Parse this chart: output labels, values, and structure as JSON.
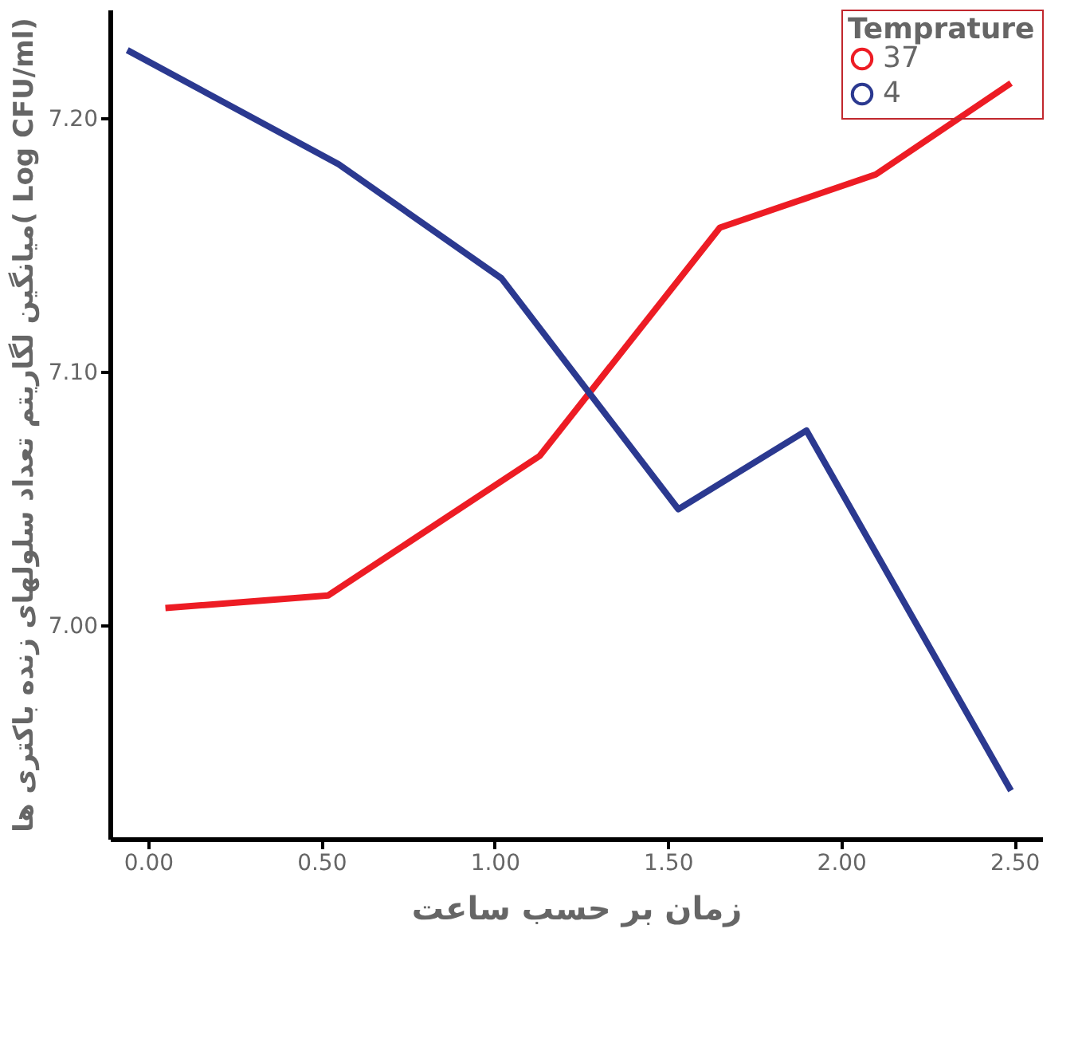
{
  "chart_data": {
    "type": "line",
    "xlabel": "زمان بر حسب ساعت",
    "ylabel": "میانگین لگاریتم تعداد سلولهای زنده باکتری ها( Log CFU/ml)",
    "legend_title": "Temprature",
    "series": [
      {
        "name": "37",
        "color": "#ed1c24",
        "x": [
          0.05,
          0.52,
          1.13,
          1.65,
          2.1,
          2.49
        ],
        "values": [
          7.007,
          7.012,
          7.067,
          7.157,
          7.178,
          7.214
        ]
      },
      {
        "name": "4",
        "color": "#2b3990",
        "x": [
          -0.06,
          0.55,
          1.02,
          1.53,
          1.9,
          2.49
        ],
        "values": [
          7.227,
          7.182,
          7.137,
          7.046,
          7.077,
          6.935
        ]
      }
    ],
    "xlim": [
      -0.11,
      2.58
    ],
    "xticks": [
      {
        "value": 0,
        "label": "0.00"
      },
      {
        "value": 0.5,
        "label": "0.50"
      },
      {
        "value": 1,
        "label": "1.00"
      },
      {
        "value": 1.5,
        "label": "1.50"
      },
      {
        "value": 2,
        "label": "2.00"
      },
      {
        "value": 2.5,
        "label": "2.50"
      }
    ],
    "ylim": [
      6.916,
      7.243
    ],
    "yticks": [
      {
        "value": 7.0,
        "label": "7.00"
      },
      {
        "value": 7.1,
        "label": "7.10"
      },
      {
        "value": 7.2,
        "label": "7.20"
      }
    ],
    "grid": false,
    "legend": "top right"
  }
}
